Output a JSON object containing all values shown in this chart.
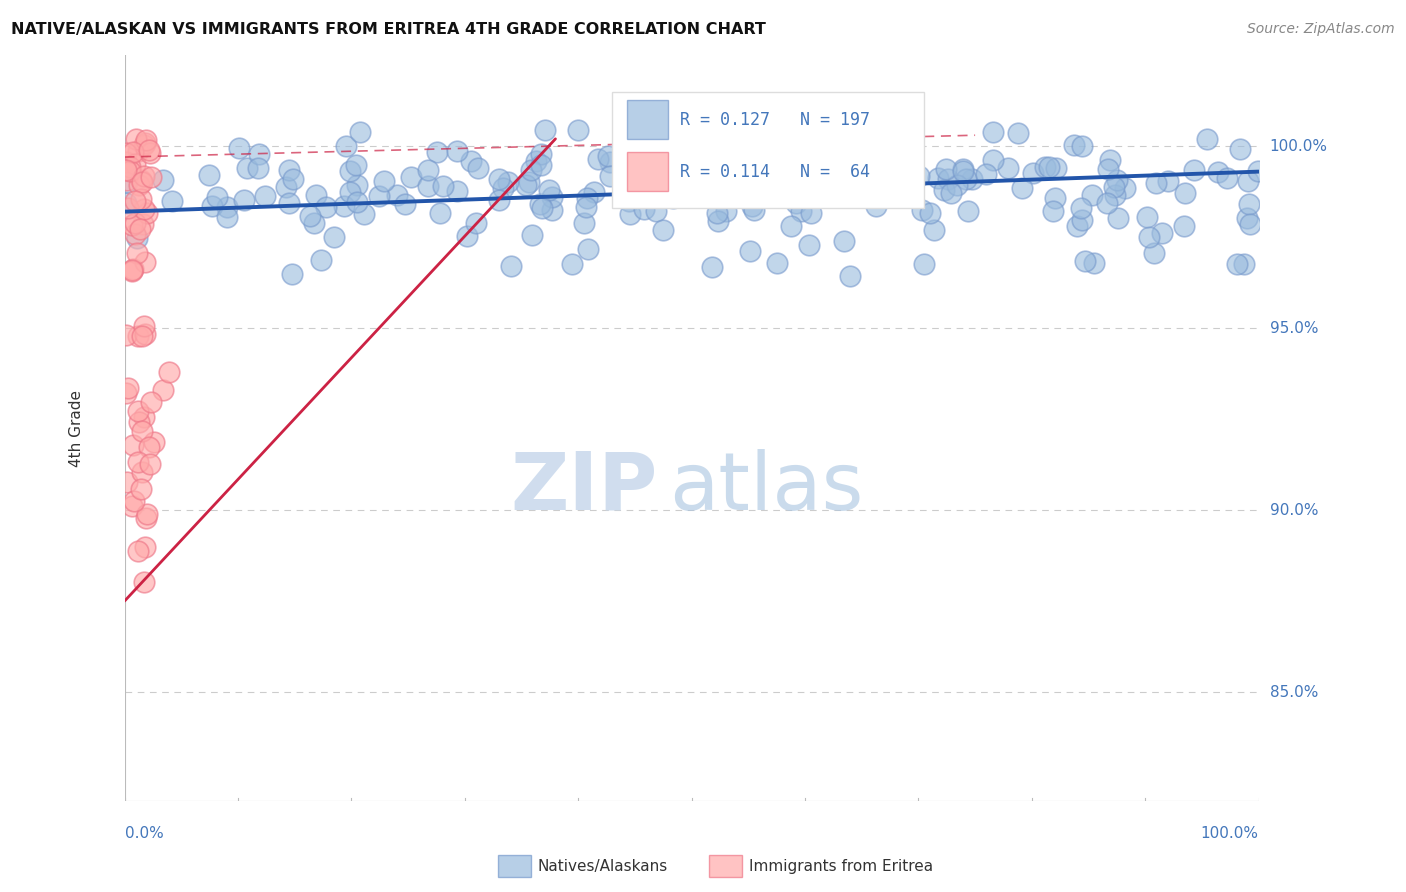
{
  "title": "NATIVE/ALASKAN VS IMMIGRANTS FROM ERITREA 4TH GRADE CORRELATION CHART",
  "source": "Source: ZipAtlas.com",
  "ylabel": "4th Grade",
  "ytick_labels": [
    "100.0%",
    "95.0%",
    "90.0%",
    "85.0%"
  ],
  "ytick_values": [
    1.0,
    0.95,
    0.9,
    0.85
  ],
  "xlim": [
    0.0,
    1.0
  ],
  "ylim": [
    0.82,
    1.025
  ],
  "legend_blue_R": "R = 0.127",
  "legend_blue_N": "N = 197",
  "legend_pink_R": "R = 0.114",
  "legend_pink_N": "N =  64",
  "blue_color": "#99BBDD",
  "blue_edge_color": "#7799CC",
  "pink_color": "#FFAAAA",
  "pink_edge_color": "#EE7788",
  "trendline_blue_color": "#2255AA",
  "trendline_pink_color": "#CC2244",
  "watermark_zip": "ZIP",
  "watermark_atlas": "atlas",
  "background_color": "#FFFFFF",
  "legend_text_color": "#4477BB",
  "ytick_color": "#4477BB",
  "source_color": "#888888"
}
